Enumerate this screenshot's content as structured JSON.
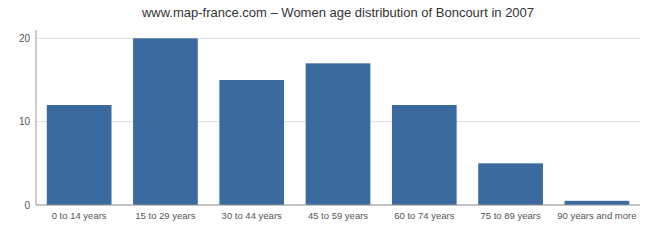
{
  "chart_data": {
    "type": "bar",
    "title": "www.map-france.com – Women age distribution of Boncourt in 2007",
    "categories": [
      "0 to 14 years",
      "15 to 29 years",
      "30 to 44 years",
      "45 to 59 years",
      "60 to 74 years",
      "75 to 89 years",
      "90 years and more"
    ],
    "values": [
      12,
      20,
      15,
      17,
      12,
      5,
      0.5
    ],
    "color": "#3A6A9E",
    "ylim": [
      0,
      21
    ],
    "yticks": [
      0,
      10,
      20
    ],
    "grid": true
  }
}
